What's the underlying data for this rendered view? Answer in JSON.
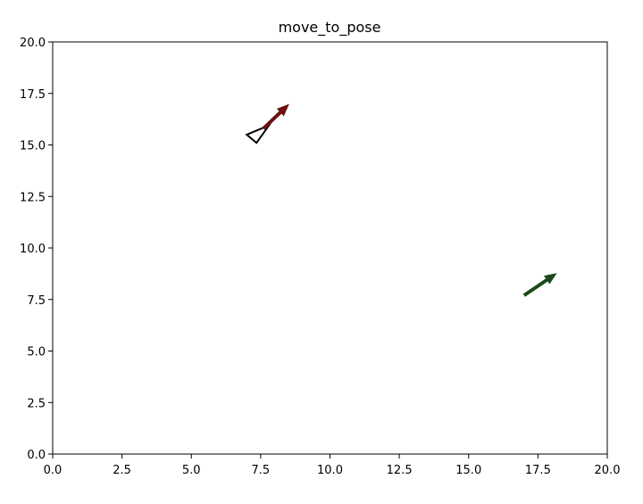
{
  "chart_data": {
    "type": "scatter",
    "title": "move_to_pose",
    "xlabel": "",
    "ylabel": "",
    "xlim": [
      0,
      20
    ],
    "ylim": [
      0,
      20
    ],
    "xticks": [
      0,
      2.5,
      5,
      7.5,
      10,
      12.5,
      15,
      17.5,
      20
    ],
    "yticks": [
      0,
      2.5,
      5,
      7.5,
      10,
      12.5,
      15,
      17.5,
      20
    ],
    "xtick_labels": [
      "0.0",
      "2.5",
      "5.0",
      "7.5",
      "10.0",
      "12.5",
      "15.0",
      "17.5",
      "20.0"
    ],
    "ytick_labels": [
      "0.0",
      "2.5",
      "5.0",
      "7.5",
      "10.0",
      "12.5",
      "15.0",
      "17.5",
      "20.0"
    ],
    "grid": false,
    "arrows": [
      {
        "name": "",
        "x": 7.6,
        "y": 15.8,
        "dx": 0.9,
        "dy": 1.15,
        "color": "#6b1010"
      },
      {
        "name": "",
        "x": 17.0,
        "y": 7.7,
        "dx": 1.15,
        "dy": 1.05,
        "color": "#1a4a1a"
      }
    ],
    "robot_triangle": {
      "points": [
        [
          7.0,
          15.5
        ],
        [
          7.35,
          15.1
        ],
        [
          7.8,
          15.95
        ]
      ],
      "color": "#000000"
    }
  }
}
